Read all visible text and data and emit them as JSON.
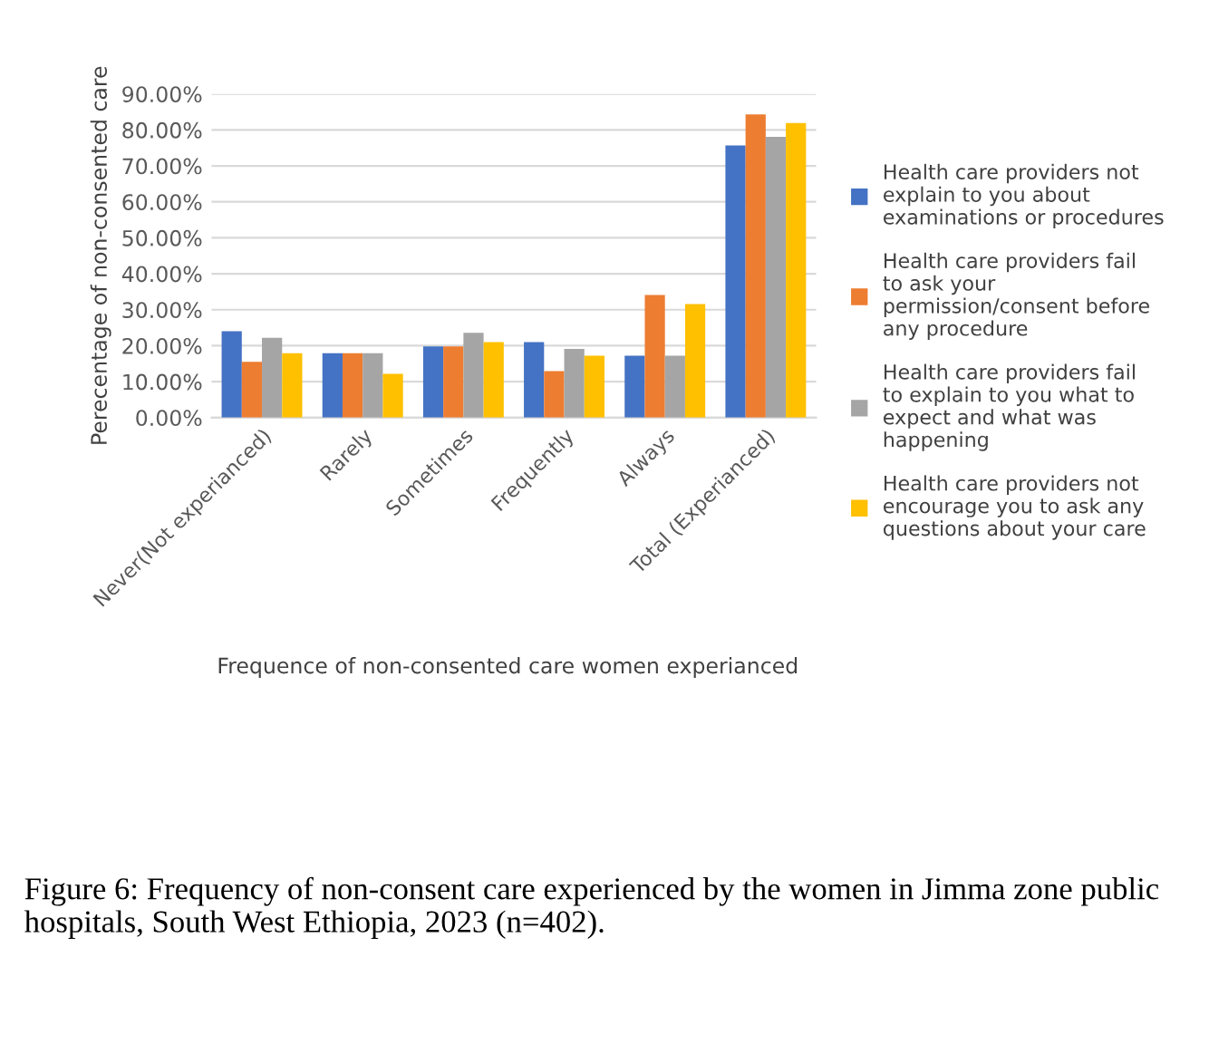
{
  "chart_data": {
    "type": "bar",
    "xlabel": "Frequence of non-consented care women experianced",
    "ylabel": "Perecentage of non-consented care",
    "categories": [
      "Never(Not experianced)",
      "Rarely",
      "Sometimes",
      "Frequently",
      "Always",
      "Total (Experianced)"
    ],
    "series": [
      {
        "name": "Health care providers not explain to you about examinations or procedures",
        "color": "#4472c4",
        "values": [
          24.0,
          17.9,
          19.8,
          21.0,
          17.2,
          75.7
        ]
      },
      {
        "name": "Health care providers fail to ask your permission/consent before any procedure",
        "color": "#ed7d31",
        "values": [
          15.5,
          17.9,
          19.8,
          12.9,
          34.1,
          84.3
        ]
      },
      {
        "name": "Health care providers fail to explain to you what to expect and what was happening",
        "color": "#a5a5a5",
        "values": [
          22.2,
          17.9,
          23.6,
          19.1,
          17.2,
          78.1
        ]
      },
      {
        "name": "Health care providers not encourage you to ask any questions about your care",
        "color": "#ffc000",
        "values": [
          17.9,
          12.2,
          21.0,
          17.2,
          31.6,
          81.9
        ]
      }
    ],
    "ylim": [
      0,
      90
    ],
    "yticks": [
      {
        "value": 0,
        "label": "0.00%"
      },
      {
        "value": 10,
        "label": "10.00%"
      },
      {
        "value": 20,
        "label": "20.00%"
      },
      {
        "value": 30,
        "label": "30.00%"
      },
      {
        "value": 40,
        "label": "40.00%"
      },
      {
        "value": 50,
        "label": "50.00%"
      },
      {
        "value": 60,
        "label": "60.00%"
      },
      {
        "value": 70,
        "label": "70.00%"
      },
      {
        "value": 80,
        "label": "80.00%"
      },
      {
        "value": 90,
        "label": "90.00%"
      }
    ],
    "grid": "y",
    "legend": "right",
    "annotations": [
      "Figure 6: Frequency of non-consent care experienced by the women in Jimma zone public hospitals, South West Ethiopia, 2023 (n=402)."
    ]
  }
}
